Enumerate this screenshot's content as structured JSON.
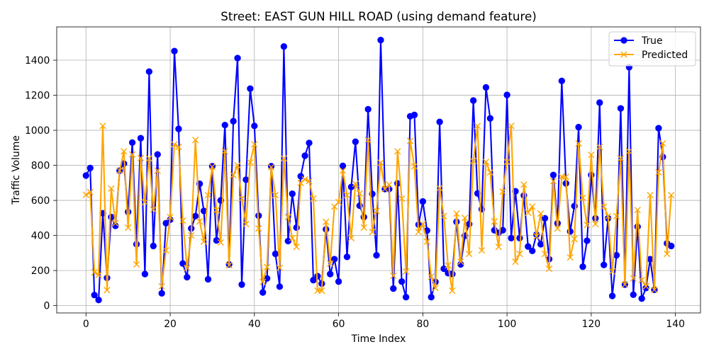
{
  "chart_data": {
    "type": "line",
    "title": "Street: EAST GUN HILL ROAD (using demand feature)",
    "xlabel": "Time Index",
    "ylabel": "Traffic Volume",
    "xlim": [
      -6.95,
      145.95
    ],
    "ylim": [
      -42,
      1590
    ],
    "xticks": [
      0,
      20,
      40,
      60,
      80,
      100,
      120,
      140
    ],
    "yticks": [
      0,
      200,
      400,
      600,
      800,
      1000,
      1200,
      1400
    ],
    "grid": true,
    "legend_position": "upper right",
    "x": [
      0,
      1,
      2,
      3,
      4,
      5,
      6,
      7,
      8,
      9,
      10,
      11,
      12,
      13,
      14,
      15,
      16,
      17,
      18,
      19,
      20,
      21,
      22,
      23,
      24,
      25,
      26,
      27,
      28,
      29,
      30,
      31,
      32,
      33,
      34,
      35,
      36,
      37,
      38,
      39,
      40,
      41,
      42,
      43,
      44,
      45,
      46,
      47,
      48,
      49,
      50,
      51,
      52,
      53,
      54,
      55,
      56,
      57,
      58,
      59,
      60,
      61,
      62,
      63,
      64,
      65,
      66,
      67,
      68,
      69,
      70,
      71,
      72,
      73,
      74,
      75,
      76,
      77,
      78,
      79,
      80,
      81,
      82,
      83,
      84,
      85,
      86,
      87,
      88,
      89,
      90,
      91,
      92,
      93,
      94,
      95,
      96,
      97,
      98,
      99,
      100,
      101,
      102,
      103,
      104,
      105,
      106,
      107,
      108,
      109,
      110,
      111,
      112,
      113,
      114,
      115,
      116,
      117,
      118,
      119,
      120,
      121,
      122,
      123,
      124,
      125,
      126,
      127,
      128,
      129,
      130,
      131,
      132,
      133,
      134,
      135,
      136,
      137,
      138,
      139
    ],
    "series": [
      {
        "name": "True",
        "color": "#0000ff",
        "marker": "circle",
        "values": [
          742,
          785,
          60,
          32,
          527,
          158,
          505,
          455,
          770,
          810,
          535,
          930,
          350,
          955,
          180,
          1335,
          340,
          862,
          70,
          470,
          490,
          1452,
          1008,
          240,
          162,
          440,
          510,
          695,
          540,
          150,
          795,
          372,
          600,
          1030,
          235,
          1052,
          1412,
          120,
          718,
          1238,
          1025,
          513,
          75,
          155,
          795,
          295,
          108,
          1478,
          368,
          638,
          445,
          738,
          855,
          928,
          145,
          168,
          125,
          435,
          180,
          265,
          137,
          797,
          278,
          677,
          935,
          570,
          505,
          1120,
          637,
          287,
          1515,
          665,
          665,
          97,
          697,
          137,
          48,
          1080,
          1088,
          462,
          594,
          428,
          48,
          135,
          1048,
          210,
          185,
          180,
          478,
          235,
          398,
          465,
          1170,
          640,
          550,
          1245,
          1068,
          430,
          415,
          430,
          1202,
          385,
          652,
          385,
          628,
          337,
          312,
          405,
          350,
          498,
          265,
          745,
          470,
          1282,
          697,
          423,
          568,
          1018,
          222,
          370,
          745,
          498,
          1158,
          232,
          498,
          55,
          287,
          1125,
          120,
          1360,
          62,
          450,
          40,
          100,
          265,
          90,
          1012,
          848,
          355,
          340
        ]
      },
      {
        "name": "Predicted",
        "color": "#ffa500",
        "marker": "x",
        "values": [
          632,
          648,
          190,
          175,
          1025,
          88,
          668,
          470,
          770,
          880,
          445,
          862,
          235,
          842,
          590,
          840,
          548,
          770,
          110,
          315,
          505,
          920,
          905,
          485,
          215,
          400,
          945,
          480,
          365,
          630,
          792,
          545,
          360,
          880,
          230,
          745,
          800,
          610,
          465,
          818,
          920,
          440,
          135,
          220,
          790,
          630,
          215,
          840,
          505,
          385,
          335,
          700,
          720,
          710,
          610,
          85,
          85,
          478,
          240,
          565,
          590,
          770,
          630,
          385,
          695,
          640,
          445,
          945,
          420,
          540,
          815,
          665,
          690,
          170,
          880,
          610,
          195,
          940,
          795,
          420,
          465,
          365,
          165,
          100,
          670,
          510,
          230,
          85,
          525,
          250,
          500,
          295,
          825,
          1025,
          315,
          820,
          760,
          480,
          335,
          650,
          820,
          1025,
          250,
          295,
          690,
          530,
          565,
          395,
          525,
          295,
          210,
          710,
          440,
          735,
          735,
          275,
          380,
          925,
          615,
          460,
          860,
          465,
          905,
          565,
          510,
          195,
          510,
          840,
          120,
          880,
          155,
          545,
          145,
          110,
          630,
          90,
          760,
          925,
          295,
          630
        ]
      }
    ]
  }
}
